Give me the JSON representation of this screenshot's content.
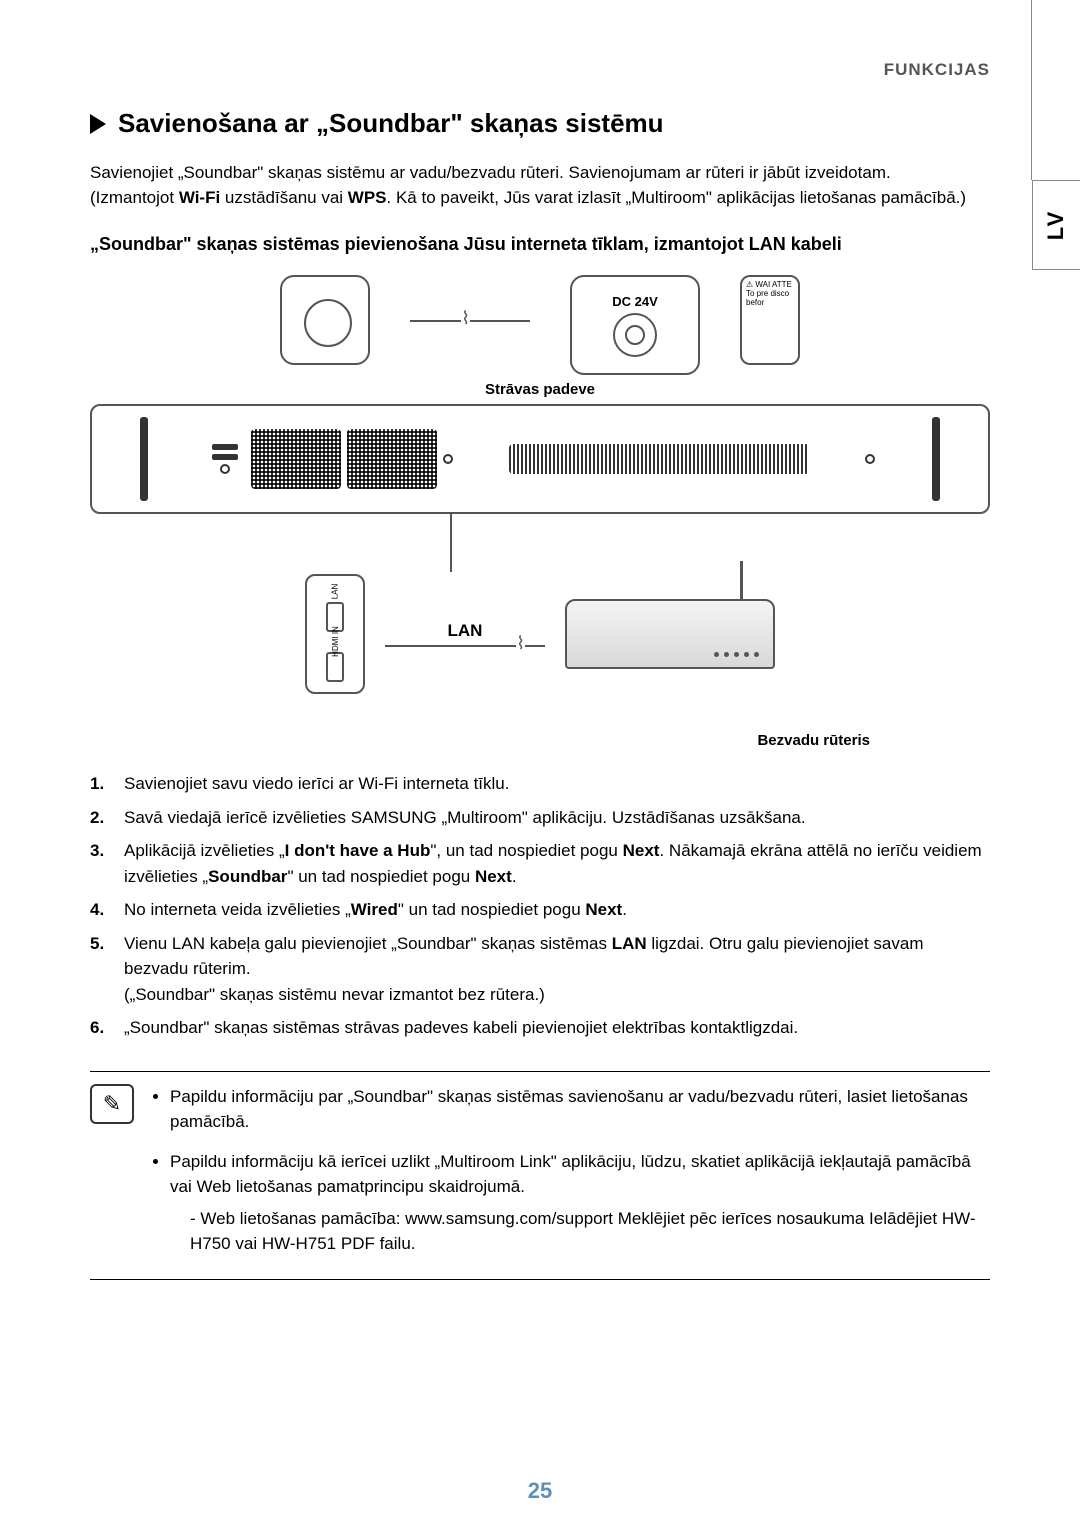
{
  "header": {
    "category": "FUNKCIJAS"
  },
  "side_tab": "LV",
  "section": {
    "title": "Savienošana ar „Soundbar\" skaņas sistēmu",
    "intro_line1": "Savienojiet „Soundbar\" skaņas sistēmu ar vadu/bezvadu rūteri. Savienojumam ar rūteri ir jābūt izveidotam.",
    "intro_prefix": "(Izmantojot ",
    "intro_bold1": "Wi-Fi",
    "intro_mid": " uzstādīšanu vai ",
    "intro_bold2": "WPS",
    "intro_suffix": ". Kā to paveikt, Jūs varat izlasīt „Multiroom\" aplikācijas lietošanas pamācībā.)"
  },
  "subheading": "„Soundbar\" skaņas sistēmas pievienošana Jūsu interneta tīklam, izmantojot LAN kabeli",
  "diagram": {
    "dc_label": "DC 24V",
    "power_label": "Strāvas padeve",
    "lan_label": "LAN",
    "port_lan": "LAN",
    "port_hdmi": "HDMI IN",
    "router_caption": "Bezvadu rūteris",
    "warn_text": "⚠ WAI ATTE To pre disco befor"
  },
  "steps": {
    "s1": "Savienojiet savu viedo ierīci ar Wi-Fi interneta tīklu.",
    "s2": "Savā viedajā ierīcē izvēlieties SAMSUNG „Multiroom\" aplikāciju. Uzstādīšanas uzsākšana.",
    "s3_a": "Aplikācijā izvēlieties  „",
    "s3_b1": "I don't have a Hub",
    "s3_b": "\", un tad nospiediet pogu ",
    "s3_b2": "Next",
    "s3_c": ". Nākamajā ekrāna attēlā no ierīču veidiem izvēlieties „",
    "s3_b3": "Soundbar",
    "s3_d": "\" un tad nospiediet pogu ",
    "s3_b4": "Next",
    "s3_e": ".",
    "s4_a": "No interneta veida izvēlieties „",
    "s4_b1": "Wired",
    "s4_b": "\" un tad nospiediet pogu ",
    "s4_b2": "Next",
    "s4_c": ".",
    "s5_a": "Vienu LAN kabeļa galu pievienojiet „Soundbar\" skaņas sistēmas ",
    "s5_b1": "LAN",
    "s5_b": " ligzdai. Otru galu pievienojiet savam bezvadu rūterim.",
    "s5_c": "(„Soundbar\" skaņas sistēmu nevar izmantot bez rūtera.)",
    "s6": "„Soundbar\" skaņas sistēmas strāvas padeves kabeli pievienojiet elektrības kontaktligzdai."
  },
  "notes": {
    "n1": "Papildu informāciju par „Soundbar\" skaņas sistēmas savienošanu ar vadu/bezvadu rūteri, lasiet lietošanas pamācībā.",
    "n2": "Papildu informāciju kā ierīcei uzlikt „Multiroom Link\" aplikāciju, lūdzu, skatiet aplikācijā iekļautajā pamācībā vai Web lietošanas pamatprincipu skaidrojumā.",
    "n2_sub": "Web lietošanas pamācība: www.samsung.com/support Meklējiet pēc ierīces nosaukuma Ielādējiet HW-H750 vai HW-H751 PDF failu."
  },
  "page_number": "25",
  "colors": {
    "page_num": "#5a8fbf",
    "text": "#000000",
    "line": "#555555"
  }
}
